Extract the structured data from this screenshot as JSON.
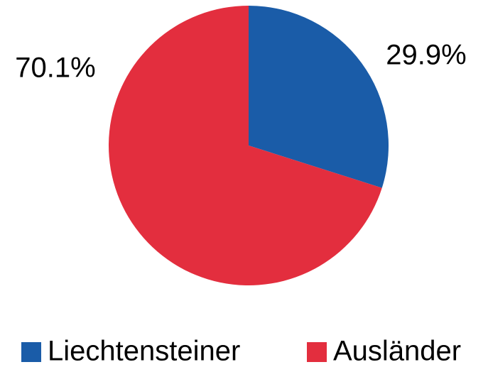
{
  "chart_data": {
    "type": "pie",
    "categories": [
      "Liechtensteiner",
      "Ausländer"
    ],
    "values": [
      29.9,
      70.1
    ],
    "value_labels": [
      "29.9%",
      "70.1%"
    ],
    "colors": [
      "#1a5ca8",
      "#e32e3e"
    ],
    "legend": "bottom"
  }
}
